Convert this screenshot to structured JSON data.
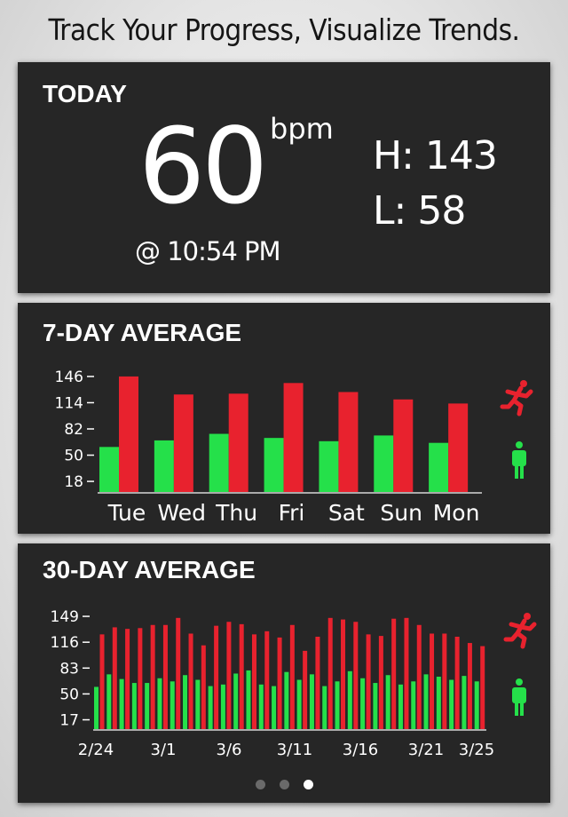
{
  "headline": "Track Your Progress, Visualize Trends.",
  "today": {
    "title": "TODAY",
    "value": "60",
    "unit": "bpm",
    "time": "@ 10:54 PM",
    "high": "H: 143",
    "low": "L: 58"
  },
  "colors": {
    "active": "#e8222e",
    "resting": "#25e04a",
    "panel": "#262626"
  },
  "icons": {
    "active": "running-person-icon",
    "resting": "standing-person-icon"
  },
  "seven_day": {
    "title": "7-DAY AVERAGE",
    "chart_data": {
      "type": "bar",
      "categories": [
        "Tue",
        "Wed",
        "Thu",
        "Fri",
        "Sat",
        "Sun",
        "Mon"
      ],
      "y_ticks": [
        146,
        114,
        82,
        50,
        18
      ],
      "ylim": [
        4,
        160
      ],
      "series": [
        {
          "values": [
            60,
            68,
            76,
            71,
            67,
            74,
            65
          ]
        },
        {
          "values": [
            146,
            124,
            125,
            138,
            127,
            118,
            113
          ]
        }
      ]
    }
  },
  "thirty_day": {
    "title": "30-DAY AVERAGE",
    "chart_data": {
      "type": "bar",
      "x_tick_labels": [
        "2/24",
        "3/1",
        "3/6",
        "3/11",
        "3/16",
        "3/21",
        "3/25"
      ],
      "y_ticks": [
        149,
        116,
        83,
        50,
        17
      ],
      "ylim": [
        4,
        157
      ],
      "series": [
        {
          "values": [
            59,
            75,
            69,
            64,
            64,
            70,
            66,
            74,
            68,
            60,
            62,
            76,
            80,
            62,
            60,
            78,
            68,
            75,
            60,
            66,
            79,
            70,
            64,
            74,
            62,
            66,
            75,
            72,
            68,
            73,
            66
          ]
        },
        {
          "values": [
            126,
            135,
            133,
            134,
            138,
            138,
            147,
            127,
            112,
            137,
            142,
            139,
            126,
            130,
            122,
            138,
            105,
            123,
            147,
            145,
            142,
            126,
            124,
            146,
            147,
            138,
            127,
            127,
            123,
            115,
            111
          ]
        }
      ]
    }
  },
  "pager": {
    "count": 3,
    "active": 2
  }
}
